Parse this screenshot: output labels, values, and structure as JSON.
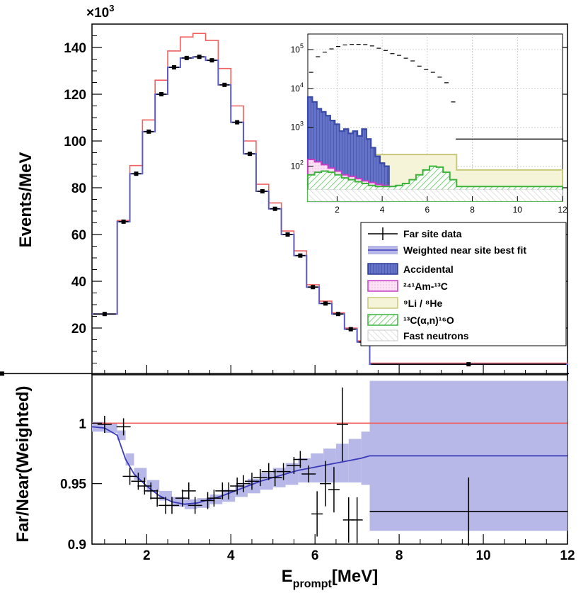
{
  "chart_data": [
    {
      "type": "line",
      "panel": "main",
      "ylabel": "Events/MeV",
      "y_multiplier": "×10",
      "y_multiplier_exp": "3",
      "xlim": [
        0.7,
        12
      ],
      "ylim": [
        0,
        150
      ],
      "y_ticks": [
        "20",
        "40",
        "60",
        "80",
        "100",
        "120",
        "140"
      ],
      "y_tick_values": [
        20,
        40,
        60,
        80,
        100,
        120,
        140
      ],
      "bin_edges": [
        0.7,
        1.3,
        1.6,
        1.9,
        2.2,
        2.5,
        2.8,
        3.1,
        3.4,
        3.7,
        4.0,
        4.3,
        4.6,
        4.9,
        5.2,
        5.5,
        5.8,
        6.1,
        6.4,
        6.7,
        7.0,
        7.3,
        12.0
      ],
      "series": [
        {
          "name": "Far site data",
          "color": "#000000",
          "values": [
            26,
            65.5,
            86,
            104,
            120,
            131.5,
            135.5,
            136,
            134.5,
            124,
            108,
            94.5,
            78.5,
            71,
            60,
            51,
            37.5,
            30.5,
            26,
            19.5,
            14,
            4.5,
            0.5
          ]
        },
        {
          "name": "Weighted near site best fit",
          "color": "#5a5ac8",
          "values": [
            26,
            65.5,
            86,
            104,
            120,
            131.5,
            135.5,
            136,
            134.5,
            124,
            108,
            94.5,
            78.5,
            71,
            60,
            51,
            37.5,
            30.5,
            26,
            19.5,
            14,
            4.5,
            0.5
          ]
        },
        {
          "name": "",
          "color": "#f06060",
          "values": [
            26,
            66,
            89.5,
            109,
            126,
            138.5,
            144.5,
            146,
            143,
            131,
            115,
            100,
            81.5,
            73.5,
            61.5,
            53,
            38.5,
            31.5,
            26.5,
            20,
            14.5,
            5,
            0.5
          ]
        }
      ]
    },
    {
      "type": "area",
      "panel": "inset",
      "scale": "log",
      "xlim": [
        0.7,
        12
      ],
      "x_ticks": [
        "2",
        "4",
        "6",
        "8",
        "10",
        "12"
      ],
      "x_tick_values": [
        2,
        4,
        6,
        8,
        10,
        12
      ],
      "y_ticks_base": "10",
      "y_ticks_exp": [
        "2",
        "3",
        "4",
        "5"
      ],
      "y_tick_exp_values": [
        2,
        3,
        4,
        5
      ],
      "ylim_exp": [
        1.1,
        5.4
      ],
      "data_points": {
        "x": [
          0.85,
          1.15,
          1.45,
          1.75,
          2.05,
          2.35,
          2.65,
          2.95,
          3.25,
          3.55,
          3.85,
          4.15,
          4.45,
          4.75,
          5.05,
          5.35,
          5.65,
          5.95,
          6.25,
          6.55,
          6.85,
          7.15,
          9.65
        ],
        "y": [
          26000,
          65500,
          86000,
          104000,
          120000,
          131500,
          135500,
          136000,
          134500,
          124000,
          108000,
          94500,
          78500,
          71000,
          60000,
          51000,
          37500,
          30500,
          26000,
          19500,
          14000,
          4500,
          500
        ]
      },
      "series": [
        {
          "name": "Accidental",
          "color": "#3a4aa8",
          "x": [
            0.7,
            0.9,
            1.1,
            1.3,
            1.5,
            1.7,
            1.9,
            2.1,
            2.3,
            2.5,
            2.7,
            2.9,
            3.1,
            3.3,
            3.5,
            3.7,
            3.9,
            4.1,
            4.3
          ],
          "values": [
            6000,
            4500,
            3000,
            2500,
            2000,
            1500,
            1200,
            800,
            900,
            700,
            800,
            600,
            900,
            500,
            300,
            180,
            120,
            100,
            100
          ]
        },
        {
          "name": "²⁴¹Am-¹³C",
          "color": "#c83cc8",
          "x": [
            0.7,
            1.0,
            1.3,
            1.6,
            1.9,
            2.2,
            2.5,
            2.8,
            3.1,
            3.4,
            3.7,
            4.0,
            4.3,
            4.6,
            4.9,
            5.2,
            5.5,
            5.8,
            6.1,
            6.4,
            6.7,
            7.0,
            7.3
          ],
          "values": [
            150,
            130,
            110,
            90,
            75,
            60,
            55,
            48,
            42,
            38,
            34,
            32,
            30,
            29,
            28,
            28,
            28,
            28,
            28,
            28,
            28,
            28,
            28
          ]
        },
        {
          "name": "⁹Li / ⁸He",
          "color": "#c8c87a",
          "x": [
            0.7,
            1.0,
            1.3,
            1.6,
            1.9,
            2.2,
            2.5,
            2.8,
            3.1,
            3.4,
            3.7,
            4.0,
            4.3,
            4.6,
            4.9,
            5.2,
            5.5,
            5.8,
            6.1,
            6.4,
            6.7,
            7.0,
            7.3,
            12.0
          ],
          "values": [
            350,
            330,
            300,
            280,
            260,
            250,
            240,
            230,
            220,
            210,
            200,
            200,
            200,
            200,
            200,
            200,
            200,
            200,
            200,
            200,
            200,
            200,
            80,
            80
          ]
        },
        {
          "name": "¹³C(α,n)¹⁶O",
          "color": "#3cb43c",
          "x": [
            0.7,
            1.0,
            1.3,
            1.6,
            1.9,
            2.2,
            2.5,
            2.8,
            3.1,
            3.4,
            3.7,
            4.0,
            4.3,
            4.6,
            4.9,
            5.2,
            5.5,
            5.8,
            6.1,
            6.4,
            6.7,
            7.0,
            7.3,
            12.0
          ],
          "values": [
            60,
            70,
            75,
            70,
            60,
            50,
            45,
            40,
            36,
            32,
            30,
            30,
            30,
            32,
            36,
            45,
            60,
            80,
            100,
            95,
            70,
            45,
            30,
            30
          ]
        },
        {
          "name": "Fast neutrons",
          "color": "#c8c8c8",
          "x": [
            0.7,
            12.0
          ],
          "values": [
            25,
            25
          ]
        }
      ]
    },
    {
      "type": "line",
      "panel": "ratio",
      "xlabel": "E",
      "xlabel_sub": "prompt",
      "xlabel_unit": "[MeV]",
      "ylabel": "Far/Near(Weighted)",
      "xlim": [
        0.7,
        12
      ],
      "ylim": [
        0.9,
        1.04
      ],
      "x_ticks": [
        "2",
        "4",
        "6",
        "8",
        "10",
        "12"
      ],
      "x_tick_values": [
        2,
        4,
        6,
        8,
        10,
        12
      ],
      "y_ticks": [
        "0.9",
        "0.95",
        "1"
      ],
      "y_tick_values": [
        0.9,
        0.95,
        1.0
      ],
      "reference_line": 1.0,
      "points": {
        "x": [
          1.0,
          1.45,
          1.6,
          1.8,
          1.95,
          2.1,
          2.25,
          2.45,
          2.6,
          2.85,
          3.0,
          3.15,
          3.45,
          3.6,
          3.8,
          3.95,
          4.15,
          4.3,
          4.5,
          4.7,
          4.9,
          5.05,
          5.25,
          5.5,
          5.65,
          5.85,
          6.05,
          6.25,
          6.45,
          6.65,
          6.8,
          7.0,
          9.65
        ],
        "y": [
          0.999,
          0.997,
          0.956,
          0.952,
          0.948,
          0.944,
          0.938,
          0.932,
          0.932,
          0.938,
          0.944,
          0.932,
          0.936,
          0.938,
          0.944,
          0.944,
          0.948,
          0.95,
          0.952,
          0.955,
          0.96,
          0.955,
          0.96,
          0.965,
          0.97,
          0.958,
          0.925,
          0.95,
          0.945,
          0.999,
          0.92,
          0.92,
          0.927
        ]
      },
      "best_fit": {
        "x": [
          0.7,
          1.0,
          1.3,
          1.5,
          1.7,
          2.0,
          2.3,
          2.6,
          2.9,
          3.2,
          3.5,
          3.8,
          4.1,
          4.4,
          4.7,
          5.0,
          5.3,
          5.6,
          5.9,
          6.2,
          6.5,
          6.8,
          7.1,
          7.3,
          12.0
        ],
        "y": [
          0.997,
          0.996,
          0.99,
          0.97,
          0.958,
          0.948,
          0.94,
          0.935,
          0.933,
          0.934,
          0.937,
          0.94,
          0.944,
          0.948,
          0.952,
          0.955,
          0.958,
          0.961,
          0.963,
          0.965,
          0.967,
          0.969,
          0.971,
          0.973,
          0.973
        ]
      },
      "band_halfwidth": [
        0.004,
        0.004,
        0.004,
        0.005,
        0.005,
        0.005,
        0.004,
        0.004,
        0.004,
        0.004,
        0.004,
        0.005,
        0.005,
        0.006,
        0.007,
        0.008,
        0.009,
        0.01,
        0.012,
        0.014,
        0.016,
        0.018,
        0.022,
        0.062,
        0.062
      ]
    }
  ]
}
